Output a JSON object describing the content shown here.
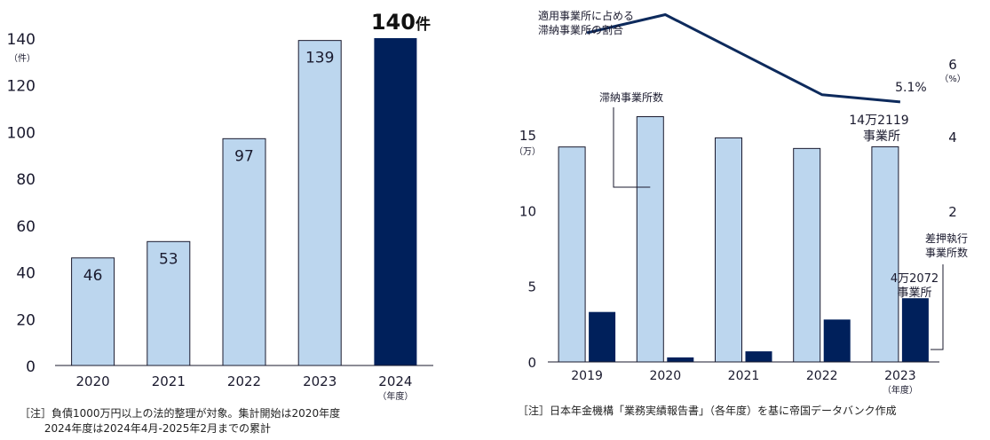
{
  "chart_data": [
    {
      "type": "bar",
      "categories": [
        "2020",
        "2021",
        "2022",
        "2023",
        "2024"
      ],
      "values": [
        46,
        53,
        97,
        139,
        140
      ],
      "data_labels": [
        "46",
        "53",
        "97",
        "139",
        "140"
      ],
      "highlight_suffix": "件",
      "y_unit": "（件）",
      "x_unit": "（年度）",
      "ylim": [
        0,
        140
      ],
      "yticks": [
        0,
        20,
        40,
        60,
        80,
        100,
        120,
        140
      ],
      "colors": {
        "normal": "#bcd6ee",
        "highlight": "#00205b"
      },
      "note": "［注］負債1000万円以上の法的整理が対象。集計開始は2020年度\n　　 2024年度は2024年4月-2025年2月までの累計"
    },
    {
      "type": "bar+line",
      "categories": [
        "2019",
        "2020",
        "2021",
        "2022",
        "2023"
      ],
      "series": [
        {
          "name": "滞納事業所数",
          "values": [
            14.2,
            16.2,
            14.8,
            14.1,
            14.2119
          ],
          "color": "#bcd6ee"
        },
        {
          "name": "差押執行事業所数",
          "values": [
            3.3,
            0.3,
            0.7,
            2.8,
            4.2072
          ],
          "color": "#00205b"
        }
      ],
      "line": {
        "name": "適用事業所に占める滞納事業所の割合",
        "values": [
          7.0,
          7.5,
          6.4,
          5.3,
          5.1
        ],
        "last_label": "5.1%",
        "color": "#0d2a5c"
      },
      "y_left": {
        "unit": "（万）",
        "ticks": [
          0,
          5,
          10,
          15
        ],
        "ylim": [
          0,
          15
        ]
      },
      "y_right": {
        "unit": "（%）",
        "ticks": [
          "2",
          "4",
          "6"
        ]
      },
      "x_unit": "（年度）",
      "annotations": {
        "line_label_1": "適用事業所に占める",
        "line_label_2": "滞納事業所の割合",
        "bar_label": "滞納事業所数",
        "last_bar_1": "14万2119",
        "last_bar_2": "事業所",
        "dark_label_1": "差押執行",
        "dark_label_2": "事業所数",
        "last_dark_1": "4万2072",
        "last_dark_2": "事業所"
      },
      "note": "［注］日本年金機構「業務実績報告書」（各年度）を基に帝国データバンク作成"
    }
  ]
}
